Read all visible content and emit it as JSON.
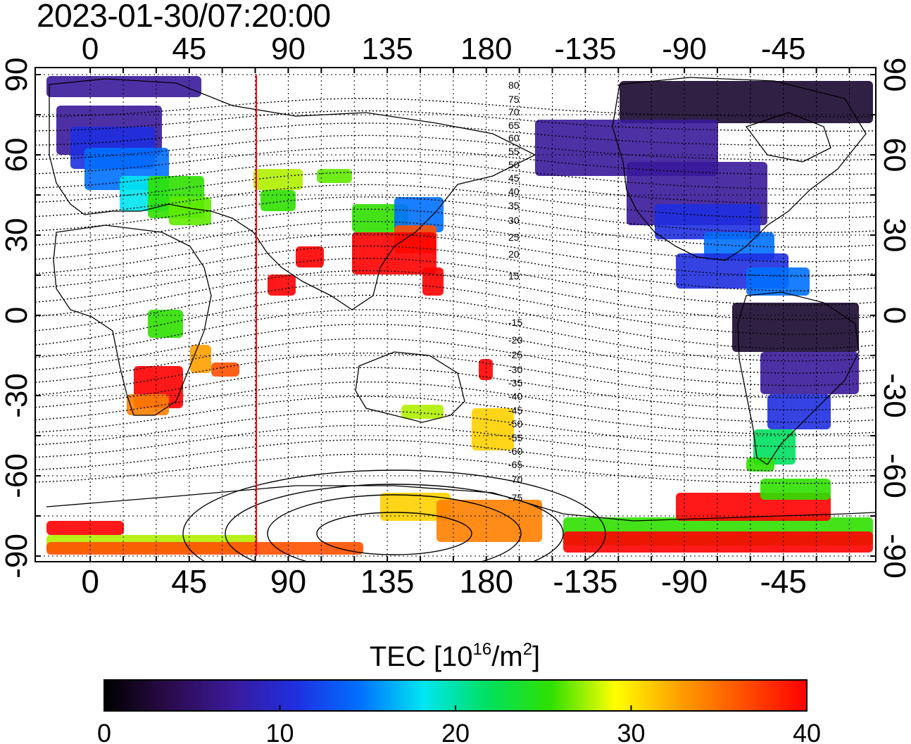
{
  "timestamp": "2023-01-30/07:20:00",
  "map": {
    "top_axis_labels": [
      "0",
      "45",
      "90",
      "135",
      "180",
      "-135",
      "-90",
      "-45"
    ],
    "bottom_axis_labels": [
      "0",
      "45",
      "90",
      "135",
      "180",
      "-135",
      "-90",
      "-45"
    ],
    "left_axis_labels": [
      "90",
      "60",
      "30",
      "0",
      "-30",
      "-60",
      "-90"
    ],
    "right_axis_labels": [
      "90",
      "60",
      "30",
      "0",
      "-30",
      "-60",
      "-90"
    ],
    "contour_labels": [
      "80",
      "75",
      "70",
      "65",
      "60",
      "55",
      "50",
      "45",
      "40",
      "35",
      "30",
      "25",
      "20",
      "15",
      "-15",
      "-20",
      "-25",
      "-30",
      "-35",
      "-40",
      "-45",
      "-50",
      "-55",
      "-60",
      "-65",
      "-70",
      "-75"
    ],
    "terminator_color": "#ff0000",
    "grid": "dotted"
  },
  "colorbar": {
    "title_main": "TEC  [10",
    "title_exp1": "16",
    "title_mid": "/m",
    "title_exp2": "2",
    "title_end": "]",
    "min": 0,
    "max": 40,
    "tick_labels": [
      "0",
      "10",
      "20",
      "30",
      "40"
    ],
    "colormap": [
      "#000000",
      "#2a0b4a",
      "#3a1a9a",
      "#1f2fe0",
      "#0070ff",
      "#00e6f0",
      "#00e060",
      "#30e000",
      "#ffff00",
      "#ffa000",
      "#ff5000",
      "#ff0000"
    ]
  }
}
